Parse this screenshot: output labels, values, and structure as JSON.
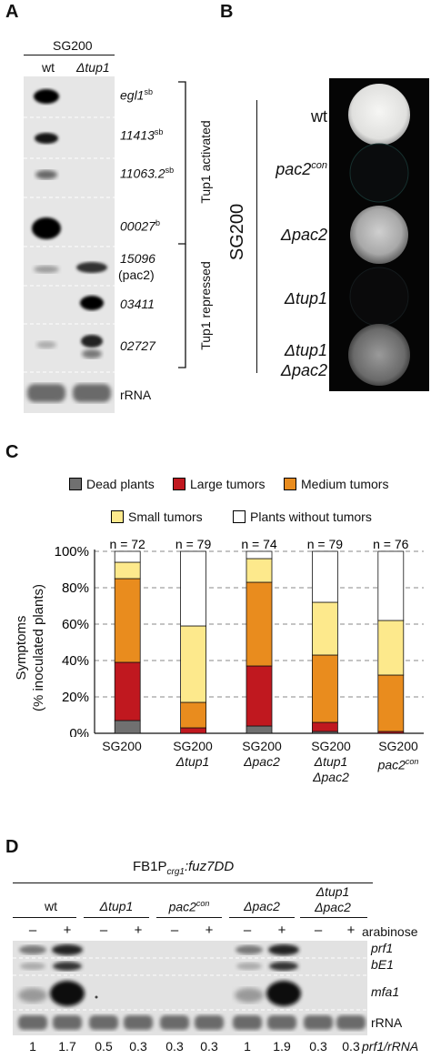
{
  "panelA": {
    "label": "A",
    "strain": "SG200",
    "lanes": [
      "wt",
      "Δtup1"
    ],
    "genes": [
      {
        "name": "egl1",
        "sup": "sb"
      },
      {
        "name": "11413",
        "sup": "sb"
      },
      {
        "name": "11063.2",
        "sup": "sb"
      },
      {
        "name": "00027",
        "sup": "b"
      },
      {
        "name": "15096",
        "sub2": "(pac2)"
      },
      {
        "name": "03411"
      },
      {
        "name": "02727"
      }
    ],
    "rrna": "rRNA",
    "group1": "Tup1 activated",
    "group2": "Tup1 repressed"
  },
  "panelB": {
    "label": "B",
    "strain": "SG200",
    "rows": [
      "wt",
      "pac2con",
      "Δpac2",
      "Δtup1",
      "Δtup1 Δpac2"
    ]
  },
  "panelC": {
    "label": "C",
    "legend": [
      "Dead plants",
      "Large tumors",
      "Medium tumors",
      "Small tumors",
      "Plants without tumors"
    ],
    "colors": {
      "dead": "#707070",
      "large": "#c0181f",
      "medium": "#e98c1e",
      "small": "#fde98c",
      "none": "#ffffff"
    },
    "ylabel_line1": "Symptoms",
    "ylabel_line2": "(% inoculated plants)",
    "yticks": [
      "0%",
      "20%",
      "40%",
      "60%",
      "80%",
      "100%"
    ],
    "chart_data": {
      "type": "bar",
      "stacked": true,
      "categories": [
        "SG200",
        "SG200 Δtup1",
        "SG200 Δpac2",
        "SG200 Δtup1 Δpac2",
        "SG200 pac2con"
      ],
      "n_labels": [
        "n = 72",
        "n = 79",
        "n = 74",
        "n = 79",
        "n = 76"
      ],
      "series": [
        {
          "name": "Dead plants",
          "values": [
            7,
            0,
            4,
            1,
            0
          ]
        },
        {
          "name": "Large tumors",
          "values": [
            32,
            3,
            33,
            5,
            1
          ]
        },
        {
          "name": "Medium tumors",
          "values": [
            46,
            14,
            46,
            37,
            31
          ]
        },
        {
          "name": "Small tumors",
          "values": [
            9,
            42,
            13,
            29,
            30
          ]
        },
        {
          "name": "Plants without tumors",
          "values": [
            6,
            41,
            4,
            28,
            38
          ]
        }
      ],
      "ylim": [
        0,
        100
      ],
      "grid": true
    }
  },
  "panelD": {
    "label": "D",
    "title_pre": "FB1P",
    "title_sub": "crg1",
    "title_post": ":fuz7DD",
    "groups": [
      "wt",
      "Δtup1",
      "pac2con",
      "Δpac2",
      "Δtup1 Δpac2"
    ],
    "signs": [
      "–",
      "+",
      "–",
      "+",
      "–",
      "+",
      "–",
      "+",
      "–",
      "+"
    ],
    "treatment": "arabinose",
    "probes": [
      "prf1",
      "bE1",
      "mfa1",
      "rRNA"
    ],
    "ratios": [
      "1",
      "1.7",
      "0.5",
      "0.3",
      "0.3",
      "0.3",
      "1",
      "1.9",
      "0.3",
      "0.3"
    ],
    "ratio_label": "prf1/rRNA"
  }
}
